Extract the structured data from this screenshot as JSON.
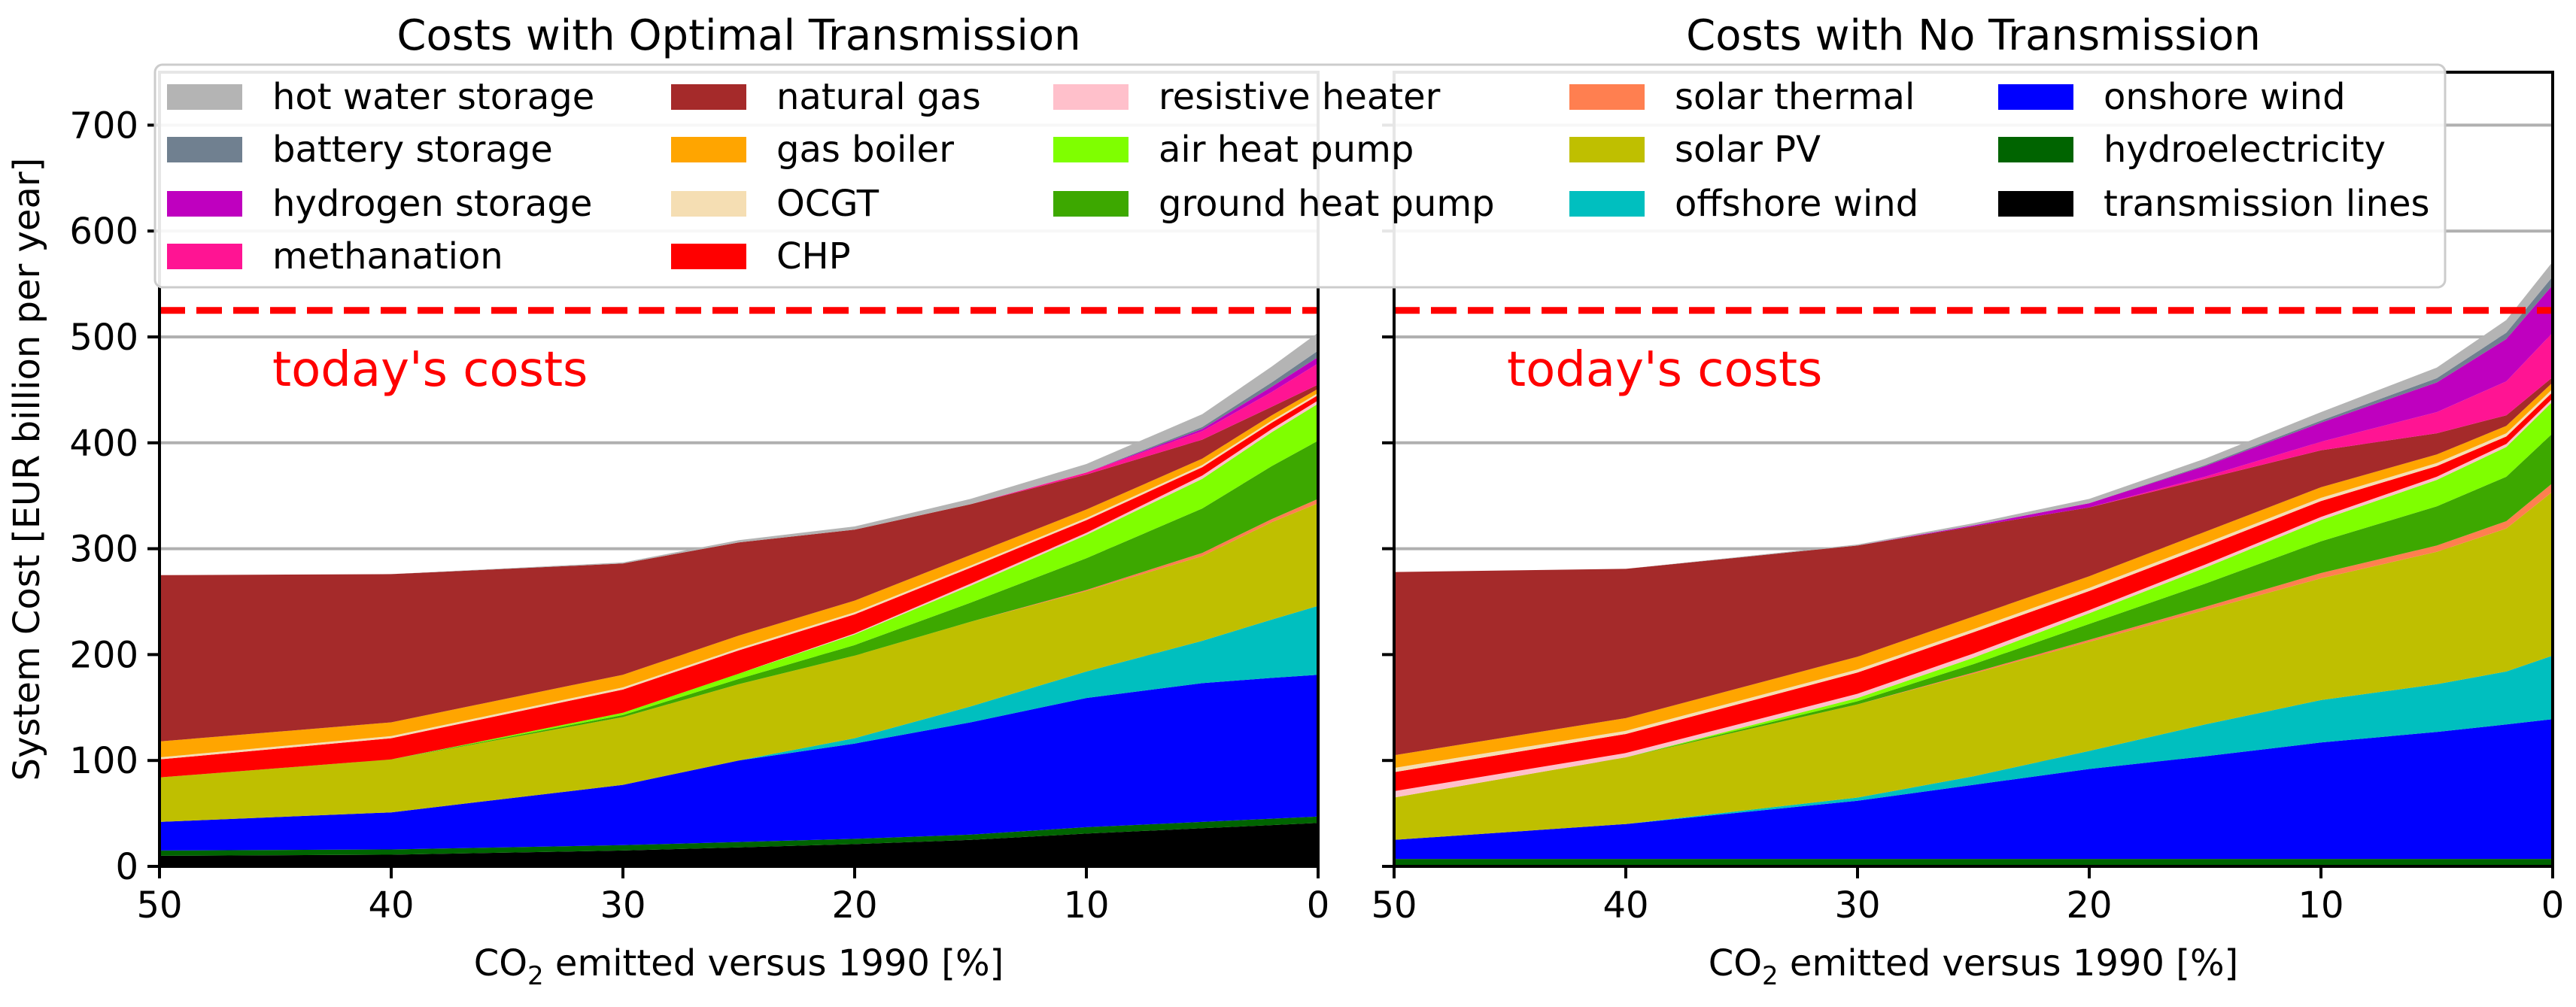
{
  "figure": {
    "ylabel": "System Cost [EUR billion per year]",
    "ylim": [
      0,
      750
    ],
    "yticks": [
      0,
      100,
      200,
      300,
      400,
      500,
      600,
      700
    ],
    "grid_lines": [
      100,
      200,
      300,
      400,
      500,
      600,
      700
    ]
  },
  "reference": {
    "label": "today's costs",
    "value": 525,
    "color": "#ff0000"
  },
  "chart_data": [
    {
      "type": "area",
      "stacked": true,
      "title": "Costs with Optimal Transmission",
      "xlabel_prefix": "CO",
      "xlabel_sub": "2",
      "xlabel_suffix": " emitted versus 1990 [%]",
      "xlim": [
        50,
        0
      ],
      "xticks": [
        50,
        40,
        30,
        20,
        10,
        0
      ],
      "x": [
        50,
        40,
        30,
        25,
        20,
        15,
        10,
        5,
        2,
        0
      ],
      "series": [
        {
          "name": "transmission lines",
          "color": "#000000",
          "values": [
            10,
            11,
            15,
            18,
            21,
            25,
            31,
            36,
            39,
            41
          ]
        },
        {
          "name": "hydroelectricity",
          "color": "#006400",
          "values": [
            5,
            5,
            5,
            5,
            5,
            5,
            6,
            6,
            6,
            6
          ]
        },
        {
          "name": "onshore wind",
          "color": "#0000ff",
          "values": [
            27,
            35,
            57,
            77,
            90,
            106,
            122,
            131,
            133,
            134
          ]
        },
        {
          "name": "offshore wind",
          "color": "#00bfbf",
          "values": [
            0,
            0,
            0,
            0,
            5,
            15,
            25,
            40,
            55,
            65
          ]
        },
        {
          "name": "solar PV",
          "color": "#bfbf00",
          "values": [
            42,
            50,
            64,
            72,
            78,
            80,
            76,
            80,
            92,
            97
          ]
        },
        {
          "name": "solar thermal",
          "color": "#ff7f50",
          "values": [
            0,
            0,
            0,
            0,
            0,
            0,
            1,
            3,
            3,
            4
          ]
        },
        {
          "name": "ground heat pump",
          "color": "#3da800",
          "values": [
            0,
            0,
            2,
            5,
            10,
            18,
            30,
            42,
            50,
            55
          ]
        },
        {
          "name": "air heat pump",
          "color": "#7fff00",
          "values": [
            0,
            0,
            2,
            5,
            10,
            16,
            22,
            28,
            32,
            35
          ]
        },
        {
          "name": "resistive heater",
          "color": "#ffc0cb",
          "values": [
            0,
            0,
            0,
            0,
            1,
            2,
            2,
            3,
            3,
            3
          ]
        },
        {
          "name": "CHP",
          "color": "#ff0000",
          "values": [
            17,
            20,
            22,
            22,
            18,
            15,
            12,
            8,
            6,
            5
          ]
        },
        {
          "name": "OCGT",
          "color": "#f5deb3",
          "values": [
            2,
            2,
            2,
            2,
            2,
            2,
            2,
            2,
            2,
            2
          ]
        },
        {
          "name": "gas boiler",
          "color": "#ffa500",
          "values": [
            15,
            13,
            12,
            12,
            11,
            10,
            8,
            6,
            5,
            4
          ]
        },
        {
          "name": "natural gas",
          "color": "#a52a2a",
          "values": [
            157,
            140,
            105,
            88,
            67,
            48,
            33,
            18,
            8,
            4
          ]
        },
        {
          "name": "methanation",
          "color": "#ff1493",
          "values": [
            0,
            0,
            0,
            0,
            0,
            0,
            2,
            8,
            14,
            20
          ]
        },
        {
          "name": "hydrogen storage",
          "color": "#bf00bf",
          "values": [
            0,
            0,
            0,
            0,
            0,
            0,
            0,
            2,
            5,
            6
          ]
        },
        {
          "name": "battery storage",
          "color": "#708090",
          "values": [
            0,
            0,
            0,
            0,
            0,
            0,
            0,
            2,
            4,
            6
          ]
        },
        {
          "name": "hot water storage",
          "color": "#b4b4b4",
          "values": [
            0,
            0,
            1,
            2,
            3,
            5,
            8,
            12,
            15,
            17
          ]
        }
      ]
    },
    {
      "type": "area",
      "stacked": true,
      "title": "Costs with No Transmission",
      "xlabel_prefix": "CO",
      "xlabel_sub": "2",
      "xlabel_suffix": " emitted versus 1990 [%]",
      "xlim": [
        50,
        0
      ],
      "xticks": [
        50,
        40,
        30,
        20,
        10,
        0
      ],
      "x": [
        50,
        40,
        30,
        25,
        20,
        15,
        10,
        5,
        2,
        0
      ],
      "series": [
        {
          "name": "transmission lines",
          "color": "#000000",
          "values": [
            0,
            0,
            0,
            0,
            0,
            0,
            0,
            0,
            0,
            0
          ]
        },
        {
          "name": "hydroelectricity",
          "color": "#006400",
          "values": [
            7,
            7,
            7,
            7,
            7,
            7,
            7,
            7,
            7,
            7
          ]
        },
        {
          "name": "onshore wind",
          "color": "#0000ff",
          "values": [
            18,
            33,
            55,
            70,
            85,
            97,
            110,
            120,
            127,
            132
          ]
        },
        {
          "name": "offshore wind",
          "color": "#00bfbf",
          "values": [
            0,
            0,
            3,
            8,
            17,
            30,
            40,
            45,
            50,
            60
          ]
        },
        {
          "name": "solar PV",
          "color": "#bfbf00",
          "values": [
            40,
            63,
            88,
            97,
            103,
            108,
            115,
            125,
            135,
            155
          ]
        },
        {
          "name": "solar thermal",
          "color": "#ff7f50",
          "values": [
            0,
            0,
            0,
            1,
            2,
            3,
            5,
            6,
            7,
            8
          ]
        },
        {
          "name": "ground heat pump",
          "color": "#3da800",
          "values": [
            0,
            0,
            3,
            8,
            15,
            22,
            30,
            37,
            42,
            47
          ]
        },
        {
          "name": "air heat pump",
          "color": "#7fff00",
          "values": [
            0,
            0,
            3,
            6,
            10,
            15,
            20,
            25,
            28,
            30
          ]
        },
        {
          "name": "resistive heater",
          "color": "#ffc0cb",
          "values": [
            6,
            4,
            4,
            4,
            3,
            3,
            3,
            3,
            3,
            3
          ]
        },
        {
          "name": "CHP",
          "color": "#ff0000",
          "values": [
            18,
            18,
            20,
            20,
            18,
            17,
            15,
            10,
            7,
            6
          ]
        },
        {
          "name": "OCGT",
          "color": "#f5deb3",
          "values": [
            4,
            3,
            3,
            3,
            3,
            3,
            3,
            3,
            3,
            3
          ]
        },
        {
          "name": "gas boiler",
          "color": "#ffa500",
          "values": [
            12,
            12,
            12,
            12,
            11,
            11,
            10,
            8,
            7,
            6
          ]
        },
        {
          "name": "natural gas",
          "color": "#a52a2a",
          "values": [
            173,
            141,
            105,
            85,
            65,
            50,
            35,
            20,
            10,
            5
          ]
        },
        {
          "name": "methanation",
          "color": "#ff1493",
          "values": [
            0,
            0,
            0,
            0,
            0,
            2,
            8,
            20,
            32,
            42
          ]
        },
        {
          "name": "hydrogen storage",
          "color": "#bf00bf",
          "values": [
            0,
            0,
            0,
            1,
            4,
            10,
            18,
            28,
            40,
            45
          ]
        },
        {
          "name": "battery storage",
          "color": "#708090",
          "values": [
            0,
            0,
            0,
            0,
            0,
            1,
            2,
            4,
            6,
            8
          ]
        },
        {
          "name": "hot water storage",
          "color": "#b4b4b4",
          "values": [
            0,
            0,
            1,
            2,
            4,
            6,
            8,
            10,
            12,
            14
          ]
        }
      ]
    }
  ],
  "legend": {
    "location": "top",
    "columns": [
      [
        "hot water storage",
        "battery storage",
        "hydrogen storage",
        "methanation"
      ],
      [
        "natural gas",
        "gas boiler",
        "OCGT",
        "CHP"
      ],
      [
        "resistive heater",
        "air heat pump",
        "ground heat pump"
      ],
      [
        "solar thermal",
        "solar PV",
        "offshore wind"
      ],
      [
        "onshore wind",
        "hydroelectricity",
        "transmission lines"
      ]
    ]
  }
}
